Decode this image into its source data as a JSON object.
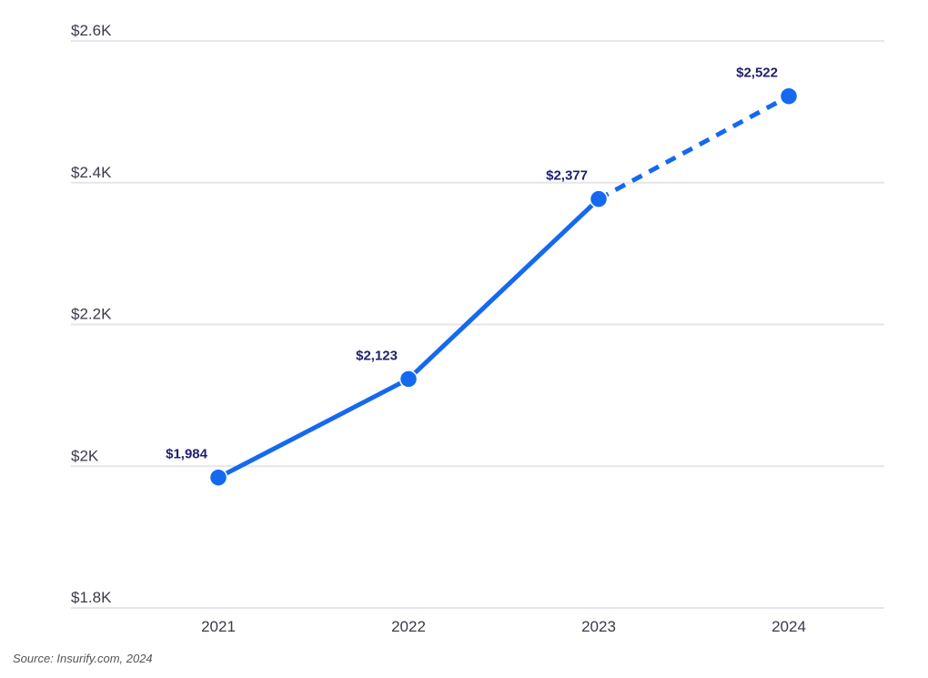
{
  "chart_data": {
    "type": "line",
    "categories": [
      "2021",
      "2022",
      "2023",
      "2024"
    ],
    "values": [
      1984,
      2123,
      2377,
      2522
    ],
    "data_labels": [
      "$1,984",
      "$2,123",
      "$2,377",
      "$2,522"
    ],
    "projected_from_index": 2,
    "ylim": [
      1800,
      2600
    ],
    "yticks": [
      {
        "value": 1800,
        "label": "$1.8K"
      },
      {
        "value": 2000,
        "label": "$2K"
      },
      {
        "value": 2200,
        "label": "$2.2K"
      },
      {
        "value": 2400,
        "label": "$2.4K"
      },
      {
        "value": 2600,
        "label": "$2.6K"
      }
    ],
    "grid": true,
    "legend": "none",
    "title": "",
    "xlabel": "",
    "ylabel": "",
    "colors": {
      "line": "#1469f0",
      "label": "#1f1f6e",
      "grid": "#e6e6ea"
    }
  },
  "source": "Source: Insurify.com, 2024"
}
